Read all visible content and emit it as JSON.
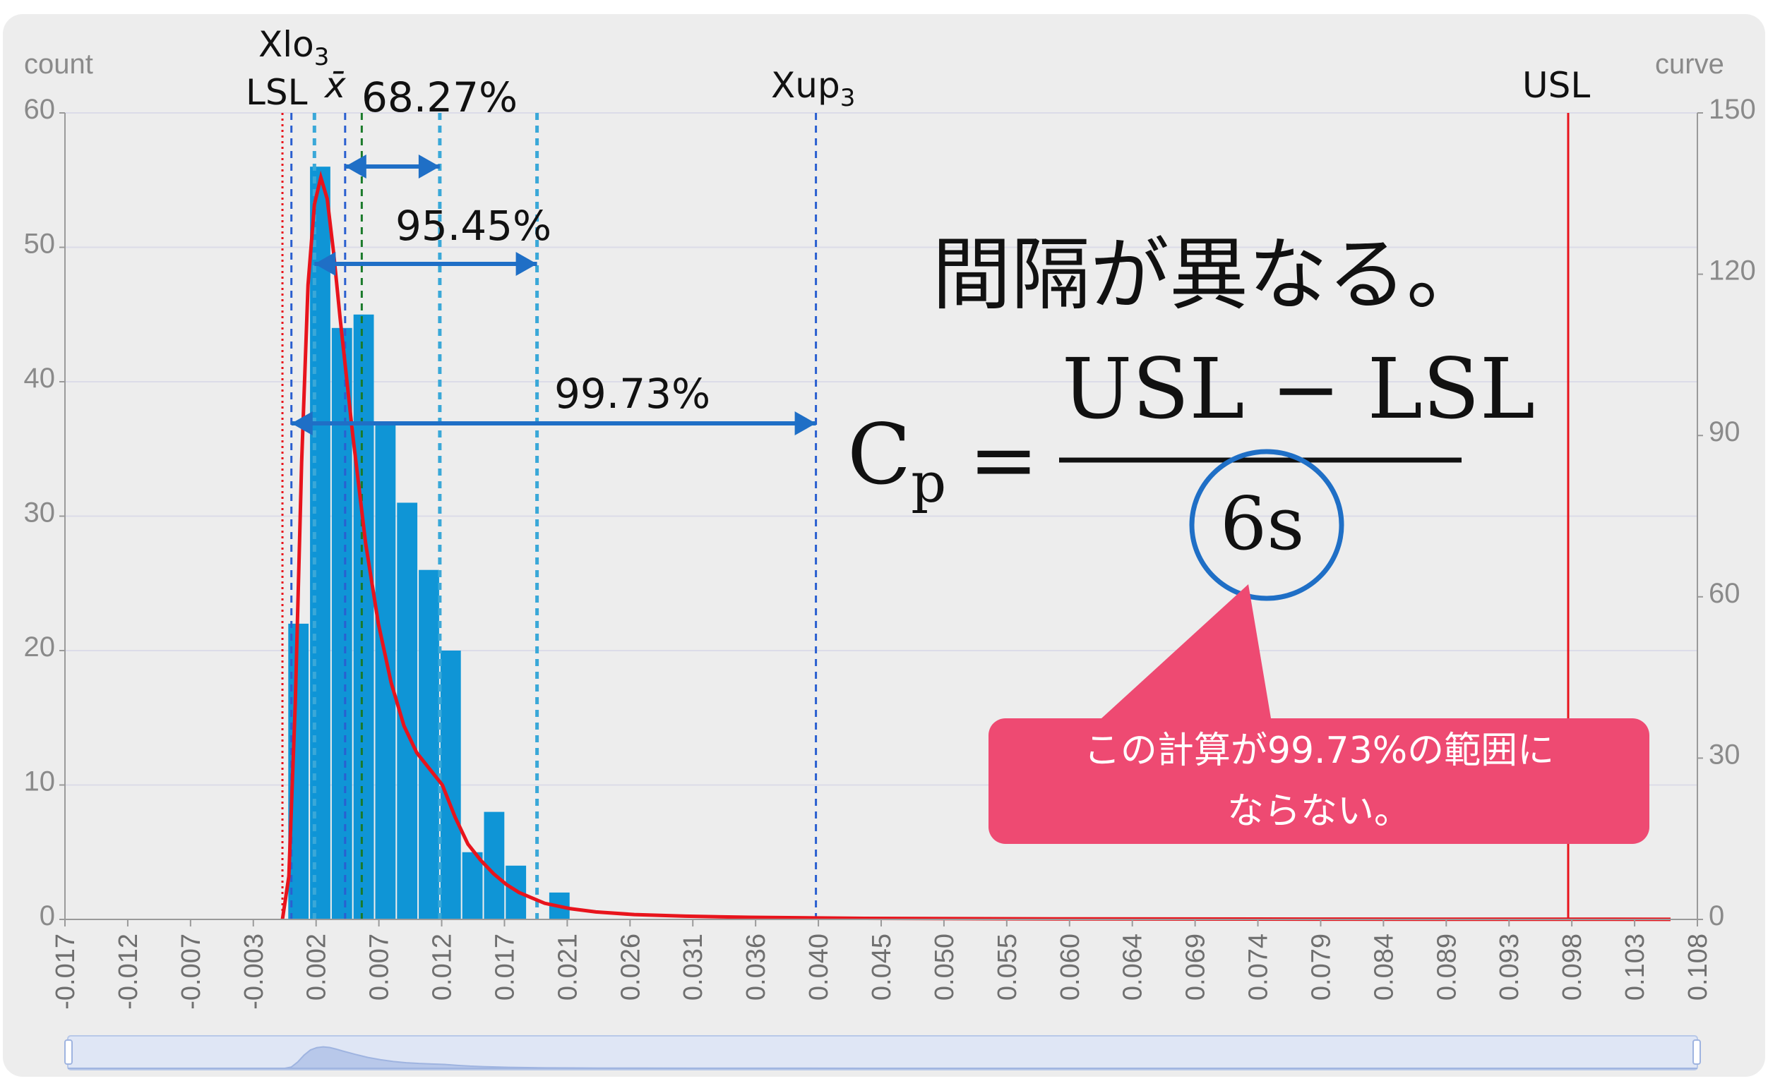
{
  "chart_data": {
    "type": "bar",
    "left_axis_label": "count",
    "right_axis_label": "curve",
    "ylim": [
      0,
      60
    ],
    "y2lim": [
      0,
      150
    ],
    "y_ticks": [
      "0",
      "10",
      "20",
      "30",
      "40",
      "50",
      "60"
    ],
    "y2_ticks": [
      "0",
      "30",
      "60",
      "90",
      "120",
      "150"
    ],
    "x_ticks": [
      "-0.017",
      "-0.012",
      "-0.007",
      "-0.003",
      "0.002",
      "0.007",
      "0.012",
      "0.017",
      "0.021",
      "0.026",
      "0.031",
      "0.036",
      "0.040",
      "0.045",
      "0.050",
      "0.055",
      "0.060",
      "0.064",
      "0.069",
      "0.074",
      "0.079",
      "0.084",
      "0.089",
      "0.093",
      "0.098",
      "0.103",
      "0.108"
    ],
    "bins": [
      {
        "x0": -0.0001,
        "x1": 0.0016,
        "count": 22
      },
      {
        "x0": 0.0016,
        "x1": 0.0033,
        "count": 56
      },
      {
        "x0": 0.0033,
        "x1": 0.005,
        "count": 44
      },
      {
        "x0": 0.005,
        "x1": 0.0067,
        "count": 45
      },
      {
        "x0": 0.0067,
        "x1": 0.0084,
        "count": 37
      },
      {
        "x0": 0.0084,
        "x1": 0.0101,
        "count": 31
      },
      {
        "x0": 0.0101,
        "x1": 0.0118,
        "count": 26
      },
      {
        "x0": 0.0118,
        "x1": 0.0135,
        "count": 20
      },
      {
        "x0": 0.0135,
        "x1": 0.0152,
        "count": 5
      },
      {
        "x0": 0.0152,
        "x1": 0.0169,
        "count": 8
      },
      {
        "x0": 0.0169,
        "x1": 0.0186,
        "count": 4
      },
      {
        "x0": 0.0186,
        "x1": 0.0203,
        "count": 0
      },
      {
        "x0": 0.0203,
        "x1": 0.022,
        "count": 2
      }
    ],
    "curve": {
      "color": "#e8141c",
      "points": [
        [
          -0.0005,
          0
        ],
        [
          0.0,
          8
        ],
        [
          0.0005,
          40
        ],
        [
          0.001,
          85
        ],
        [
          0.0015,
          118
        ],
        [
          0.002,
          133
        ],
        [
          0.0025,
          138
        ],
        [
          0.003,
          134
        ],
        [
          0.0035,
          124
        ],
        [
          0.004,
          112
        ],
        [
          0.005,
          90
        ],
        [
          0.006,
          70
        ],
        [
          0.007,
          55
        ],
        [
          0.008,
          44
        ],
        [
          0.009,
          36
        ],
        [
          0.01,
          31
        ],
        [
          0.011,
          28
        ],
        [
          0.012,
          25
        ],
        [
          0.013,
          19
        ],
        [
          0.014,
          14
        ],
        [
          0.015,
          11
        ],
        [
          0.016,
          8.5
        ],
        [
          0.017,
          6.5
        ],
        [
          0.018,
          5
        ],
        [
          0.019,
          4
        ],
        [
          0.02,
          3
        ],
        [
          0.022,
          2
        ],
        [
          0.024,
          1.4
        ],
        [
          0.027,
          0.9
        ],
        [
          0.031,
          0.6
        ],
        [
          0.036,
          0.4
        ],
        [
          0.045,
          0.2
        ],
        [
          0.06,
          0.1
        ],
        [
          0.08,
          0.05
        ],
        [
          0.108,
          0.02
        ]
      ]
    },
    "ref_lines": [
      {
        "name": "LSL",
        "x": -0.0005,
        "color": "#e8141c",
        "style": "dotted"
      },
      {
        "name": "Xlo3",
        "x": 0.0002,
        "color": "#2a5fd0",
        "style": "dashed"
      },
      {
        "name": "sigma-lo1",
        "x": 0.002,
        "color": "#3aa8d8",
        "style": "dashed"
      },
      {
        "name": "xbar",
        "x": 0.0044,
        "color": "#2a5fd0",
        "style": "dashed"
      },
      {
        "name": "median",
        "x": 0.0057,
        "color": "#1a7a2a",
        "style": "dashed"
      },
      {
        "name": "sigma-up1",
        "x": 0.0118,
        "color": "#3aa8d8",
        "style": "dashed"
      },
      {
        "name": "sigma-up2",
        "x": 0.0194,
        "color": "#3aa8d8",
        "style": "dashed"
      },
      {
        "name": "Xup3",
        "x": 0.0412,
        "color": "#2a5fd0",
        "style": "dashed"
      },
      {
        "name": "USL",
        "x": 0.1,
        "color": "#e8141c",
        "style": "solid"
      }
    ],
    "ref_labels": {
      "lsl": "LSL",
      "xlo3": "Xlo",
      "xlo3_sub": "3",
      "xbar": "x̄",
      "xup3": "Xup",
      "xup3_sub": "3",
      "usl": "USL"
    },
    "bar_color": "#0f95d6",
    "grid": true
  },
  "annotations": {
    "pct_1": "68.27%",
    "pct_2": "95.45%",
    "pct_3": "99.73%",
    "heading": "間隔が異なる。",
    "formula_lhs": "C",
    "formula_lhs_sub": "p",
    "formula_eq": "=",
    "formula_numerator": "USL − LSL",
    "formula_denominator": "6s",
    "callout": "この計算が99.73%の範囲に\nならない。",
    "arrow_color": "#1f6fc6",
    "callout_color": "#ee4a72"
  }
}
